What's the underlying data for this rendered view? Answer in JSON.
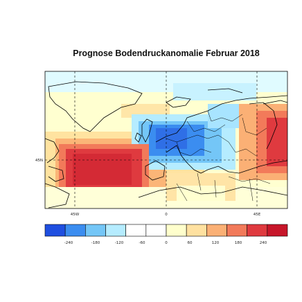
{
  "title": "Prognose Bodendruckanomalie Februar 2018",
  "map": {
    "lon_ticks": [
      "45W",
      "0",
      "45E"
    ],
    "lat_ticks": [
      "45N"
    ]
  },
  "colorbar": {
    "labels": [
      "-240",
      "-180",
      "-120",
      "-60",
      "0",
      "60",
      "120",
      "180",
      "240"
    ],
    "colors": [
      "#1f4fe0",
      "#3b8df0",
      "#74c6f7",
      "#b5ecff",
      "#ffffff",
      "#ffffff",
      "#ffffcc",
      "#ffe1a0",
      "#fbb075",
      "#f27a5a",
      "#df3a3f",
      "#c7162a"
    ]
  }
}
